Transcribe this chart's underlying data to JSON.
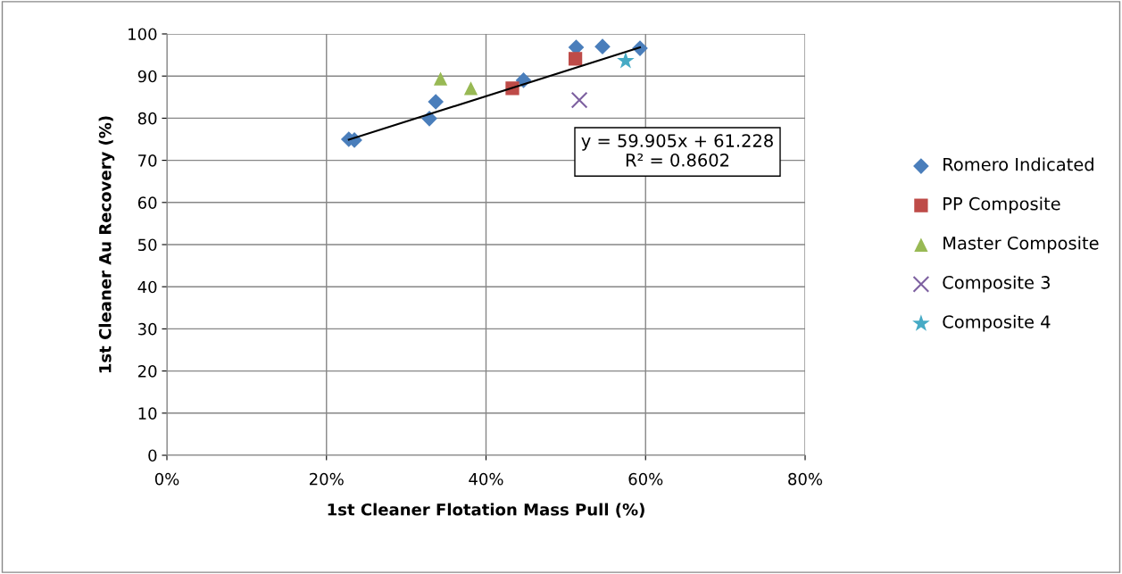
{
  "chart_data": {
    "type": "scatter",
    "xlabel": "1st Cleaner Flotation Mass Pull (%)",
    "ylabel": "1st Cleaner Au Recovery (%)",
    "xlim": [
      0,
      0.8
    ],
    "xticks": [
      {
        "value": 0,
        "label": "0%"
      },
      {
        "value": 0.2,
        "label": "20%"
      },
      {
        "value": 0.4,
        "label": "40%"
      },
      {
        "value": 0.6,
        "label": "60%"
      },
      {
        "value": 0.8,
        "label": "80%"
      }
    ],
    "ylim": [
      0,
      100
    ],
    "yticks": [
      0,
      10,
      20,
      30,
      40,
      50,
      60,
      70,
      80,
      90,
      100
    ],
    "grid": true,
    "legend": "right",
    "annotations": [
      "y = 59.905x + 61.228\nR² = 0.8602"
    ],
    "series": [
      {
        "name": "Romero Indicated",
        "color": "#4a7ebb",
        "marker": "diamond",
        "x": [
          0.228,
          0.235,
          0.329,
          0.337,
          0.447,
          0.513,
          0.546,
          0.593
        ],
        "values": [
          75.0,
          74.8,
          79.9,
          83.9,
          89.0,
          96.8,
          97.0,
          96.6
        ]
      },
      {
        "name": "PP Composite",
        "color": "#be4b48",
        "marker": "square",
        "x": [
          0.433,
          0.512
        ],
        "values": [
          87.1,
          94.1
        ]
      },
      {
        "name": "Master Composite",
        "color": "#98b954",
        "marker": "triangle",
        "x": [
          0.343,
          0.381
        ],
        "values": [
          89.4,
          87.1
        ]
      },
      {
        "name": "Composite 3",
        "color": "#7d60a0",
        "marker": "cross",
        "x": [
          0.517
        ],
        "values": [
          84.3
        ]
      },
      {
        "name": "Composite 4",
        "color": "#46aac5",
        "marker": "star",
        "x": [
          0.575
        ],
        "values": [
          93.6
        ]
      },
      {
        "type": "line",
        "color": "#000000",
        "marker": "none",
        "x": [
          0.228,
          0.593
        ],
        "values": [
          74.9,
          96.8
        ]
      }
    ]
  }
}
